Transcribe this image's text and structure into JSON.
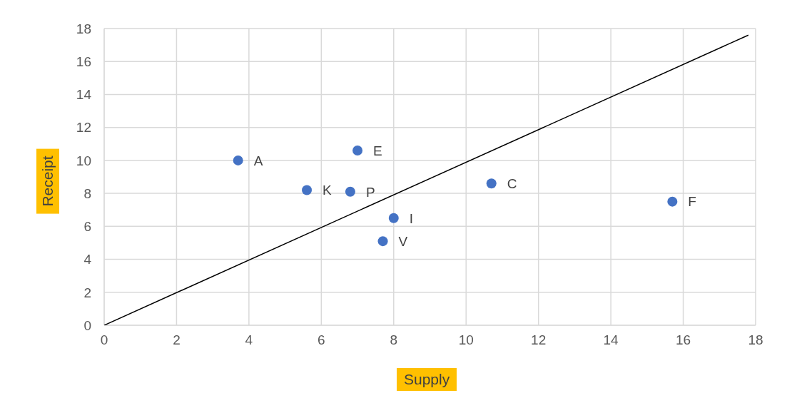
{
  "chart_data": {
    "type": "scatter",
    "xlabel": "Supply",
    "ylabel": "Receipt",
    "xlim": [
      0,
      18
    ],
    "xticks": [
      0,
      2,
      4,
      6,
      8,
      10,
      12,
      14,
      16,
      18
    ],
    "ylim": [
      0,
      18
    ],
    "yticks": [
      0,
      2,
      4,
      6,
      8,
      10,
      12,
      14,
      16,
      18
    ],
    "grid": true,
    "legend": false,
    "marker": "circle",
    "series": [
      {
        "type": "scatter",
        "color": "#4472c4",
        "x": [
          3.7,
          5.6,
          6.8,
          7.0,
          8.0,
          7.7,
          10.7,
          15.7
        ],
        "values": [
          10.0,
          8.2,
          8.1,
          10.6,
          6.5,
          5.1,
          8.6,
          7.5
        ]
      },
      {
        "type": "line",
        "color": "#000000",
        "x": [
          0,
          17.8
        ],
        "values": [
          0,
          17.6
        ],
        "marker": "none",
        "line_style": "solid"
      }
    ],
    "annotations": [
      {
        "text": "A",
        "x": 3.7,
        "y": 10.0
      },
      {
        "text": "K",
        "x": 5.6,
        "y": 8.2
      },
      {
        "text": "P",
        "x": 6.8,
        "y": 8.1
      },
      {
        "text": "E",
        "x": 7.0,
        "y": 10.6
      },
      {
        "text": "I",
        "x": 8.0,
        "y": 6.5
      },
      {
        "text": "V",
        "x": 7.7,
        "y": 5.1
      },
      {
        "text": "C",
        "x": 10.7,
        "y": 8.6
      },
      {
        "text": "F",
        "x": 15.7,
        "y": 7.5
      }
    ]
  }
}
